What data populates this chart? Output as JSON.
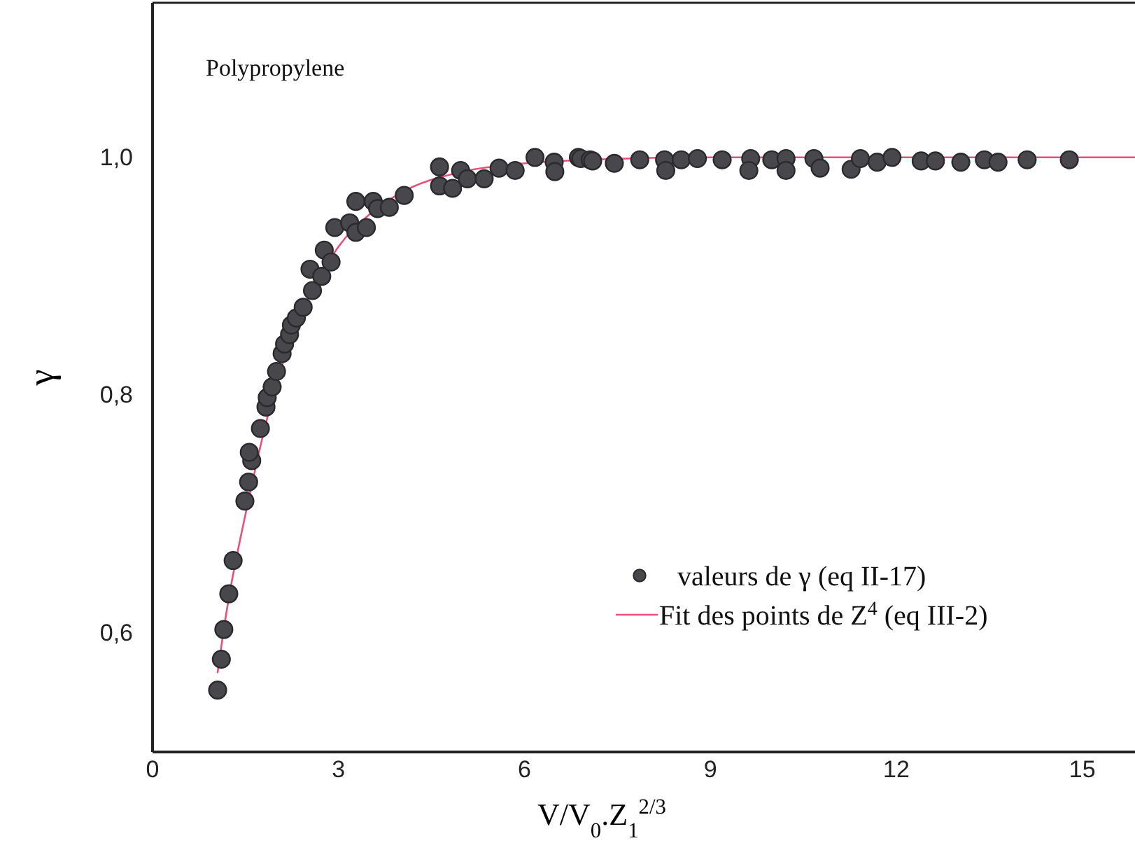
{
  "chart_data": {
    "type": "scatter",
    "xlabel": "V/V$_{0}$.Z$_{1}$$^{2/3}$",
    "ylabel": "γ",
    "annotations": [
      "Polypropylene"
    ],
    "xlim": [
      0,
      15.85
    ],
    "ylim": [
      0.5,
      1.13
    ],
    "xticks": [
      0,
      3,
      6,
      9,
      12,
      15
    ],
    "yticks": [
      {
        "value": 0.6,
        "label": "0,6"
      },
      {
        "value": 0.8,
        "label": "0,8"
      },
      {
        "value": 1.0,
        "label": "1,0"
      }
    ],
    "legend": "bottom right",
    "grid": false,
    "series": [
      {
        "name": "valeurs de γ (eq II-17)",
        "color": "#48484c",
        "marker": "circle",
        "x": [
          1.05,
          1.11,
          1.15,
          1.23,
          1.3,
          1.49,
          1.55,
          1.6,
          1.56,
          1.74,
          1.83,
          1.85,
          1.93,
          2.0,
          2.09,
          2.13,
          2.21,
          2.24,
          2.32,
          2.43,
          2.58,
          2.54,
          2.73,
          2.77,
          2.88,
          2.94,
          3.18,
          3.28,
          3.28,
          3.45,
          3.56,
          3.63,
          3.82,
          4.06,
          4.63,
          4.63,
          4.84,
          4.97,
          5.08,
          5.35,
          5.59,
          5.85,
          6.17,
          6.48,
          6.49,
          6.87,
          6.91,
          7.06,
          7.1,
          7.45,
          7.86,
          8.26,
          8.28,
          8.53,
          8.79,
          9.19,
          9.65,
          9.62,
          9.99,
          10.22,
          10.22,
          10.67,
          10.77,
          11.27,
          11.42,
          11.69,
          11.93,
          12.4,
          12.63,
          13.04,
          13.42,
          13.64,
          14.11,
          14.79
        ],
        "values": [
          0.552,
          0.578,
          0.603,
          0.633,
          0.661,
          0.711,
          0.727,
          0.745,
          0.752,
          0.772,
          0.79,
          0.798,
          0.807,
          0.82,
          0.835,
          0.843,
          0.851,
          0.859,
          0.865,
          0.874,
          0.888,
          0.906,
          0.9,
          0.922,
          0.912,
          0.941,
          0.945,
          0.963,
          0.937,
          0.941,
          0.963,
          0.957,
          0.958,
          0.968,
          0.992,
          0.976,
          0.974,
          0.989,
          0.982,
          0.982,
          0.991,
          0.989,
          1.0,
          0.996,
          0.988,
          1.0,
          0.999,
          0.998,
          0.997,
          0.995,
          0.998,
          0.998,
          0.989,
          0.998,
          0.999,
          0.998,
          0.999,
          0.989,
          0.998,
          0.999,
          0.989,
          0.999,
          0.991,
          0.99,
          0.999,
          0.996,
          1.0,
          0.997,
          0.997,
          0.996,
          0.998,
          0.996,
          0.998,
          0.998
        ]
      },
      {
        "name": "Fit des points de Z$^{4}$ (eq III-2)",
        "type": "line",
        "color": "#e8507a",
        "marker": "none",
        "x": [
          1.05,
          1.2,
          1.5,
          2.0,
          2.5,
          3.0,
          3.5,
          4.0,
          5.0,
          6.0,
          7.0,
          9.0,
          12.0,
          15.85
        ],
        "values": [
          0.567,
          0.62,
          0.7,
          0.81,
          0.88,
          0.925,
          0.952,
          0.97,
          0.988,
          0.995,
          0.998,
          1.0,
          1.0,
          1.0
        ]
      }
    ]
  }
}
